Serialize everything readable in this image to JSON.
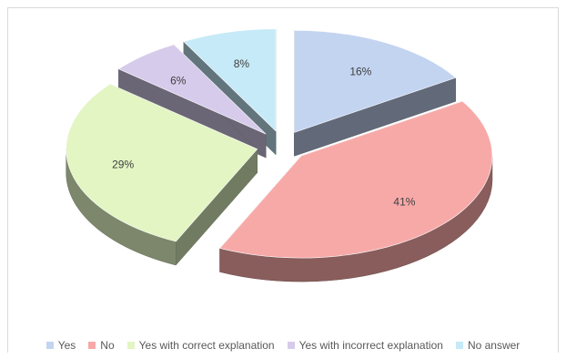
{
  "chart_data": {
    "type": "pie",
    "style": "3d-exploded",
    "categories": [
      "Yes",
      "No",
      "Yes with correct explanation",
      "Yes with incorrect explanation",
      "No answer"
    ],
    "values": [
      16,
      41,
      29,
      6,
      8
    ],
    "labels": [
      "16%",
      "41%",
      "29%",
      "6%",
      "8%"
    ],
    "colors": [
      "#c3d4f1",
      "#f7a9a8",
      "#e2f5c3",
      "#d6cbea",
      "#c6eaf7"
    ],
    "legend_position": "bottom"
  }
}
